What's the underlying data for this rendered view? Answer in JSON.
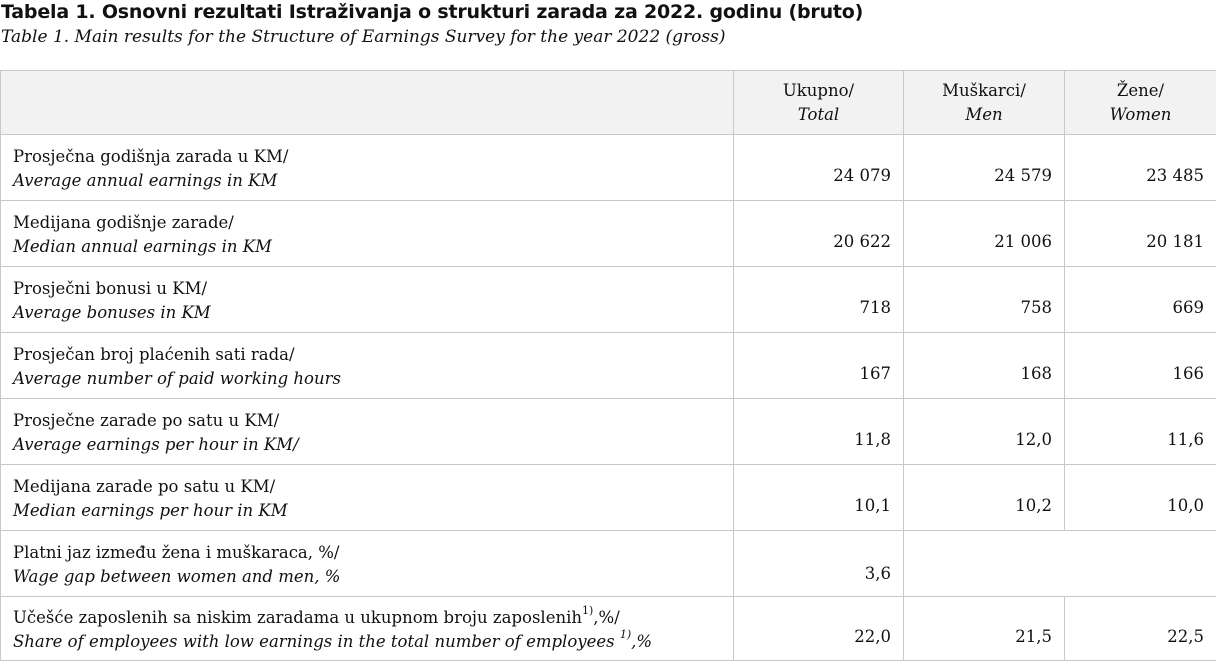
{
  "title_local": "Tabela 1. Osnovni rezultati Istraživanja o strukturi zarada za 2022. godinu (bruto)",
  "title_english": "Table 1.  Main results for the Structure of Earnings Survey for the year 2022 (gross)",
  "columns": [
    {
      "local": "Ukupno/",
      "english": "Total"
    },
    {
      "local": "Muškarci/",
      "english": "Men"
    },
    {
      "local": "Žene/",
      "english": "Women"
    }
  ],
  "rows": [
    {
      "local": "Prosječna godišnja zarada u KM/",
      "english": "Average annual earnings in KM",
      "total": "24 079",
      "men": "24 579",
      "women": "23 485"
    },
    {
      "local": "Medijana godišnje zarade/",
      "english": "Median annual earnings in KM",
      "total": "20 622",
      "men": "21 006",
      "women": "20 181"
    },
    {
      "local": "Prosječni bonusi u KM/",
      "english": "Average bonuses in KM",
      "total": "718",
      "men": "758",
      "women": "669"
    },
    {
      "local": "Prosječan broj plaćenih sati rada/",
      "english": "Average number of paid working hours",
      "total": "167",
      "men": "168",
      "women": "166"
    },
    {
      "local": "Prosječne zarade po satu u KM/",
      "english": "Average earnings per hour in KM/",
      "total": "11,8",
      "men": "12,0",
      "women": "11,6"
    },
    {
      "local": "Medijana zarade po satu u KM/",
      "english": "Median earnings per hour in KM",
      "total": "10,1",
      "men": "10,2",
      "women": "10,0"
    },
    {
      "local": "Platni jaz između žena i muškaraca, %/",
      "english": "Wage gap between women and men, %",
      "total": "3,6"
    },
    {
      "local_pre": "Učešće zaposlenih sa niskim zaradama u ukupnom broju zaposlenih",
      "local_sup": "1)",
      "local_post": ",%/",
      "english_pre": "Share of employees with low earnings in the total number of employees ",
      "english_sup": "1)",
      "english_post": ",%",
      "total": "22,0",
      "men": "21,5",
      "women": "22,5"
    }
  ]
}
